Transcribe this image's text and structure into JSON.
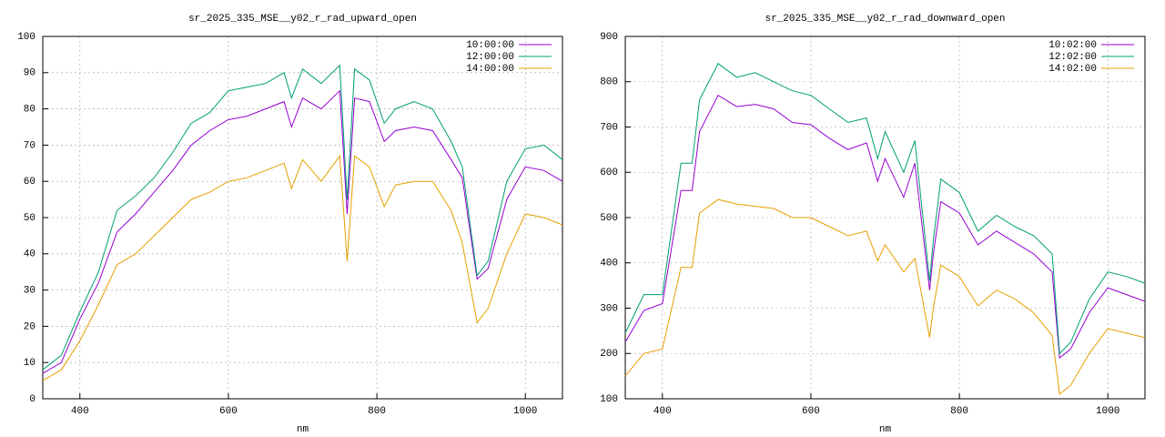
{
  "chart_data": [
    {
      "type": "line",
      "title": "sr_2025_335_MSE__y02_r_rad_upward_open",
      "x_label": "nm",
      "x": [
        350,
        375,
        400,
        425,
        450,
        475,
        500,
        525,
        550,
        575,
        600,
        625,
        650,
        675,
        685,
        700,
        725,
        750,
        760,
        770,
        790,
        810,
        825,
        850,
        875,
        900,
        915,
        935,
        950,
        975,
        1000,
        1025,
        1050
      ],
      "series": [
        {
          "name": "10:00:00",
          "color": "#9400d3",
          "values": [
            7,
            10,
            22,
            32,
            46,
            51,
            57,
            63,
            70,
            74,
            77,
            78,
            80,
            82,
            75,
            83,
            80,
            85,
            51,
            83,
            82,
            71,
            74,
            75,
            74,
            66,
            61,
            33,
            36,
            55,
            64,
            63,
            60
          ]
        },
        {
          "name": "12:00:00",
          "color": "#009e73",
          "values": [
            8,
            12,
            24,
            35,
            52,
            56,
            61,
            68,
            76,
            79,
            85,
            86,
            87,
            90,
            83,
            91,
            87,
            92,
            55,
            91,
            88,
            76,
            80,
            82,
            80,
            71,
            64,
            34,
            38,
            60,
            69,
            70,
            66
          ]
        },
        {
          "name": "14:00:00",
          "color": "#e69f00",
          "values": [
            5,
            8,
            16,
            26,
            37,
            40,
            45,
            50,
            55,
            57,
            60,
            61,
            63,
            65,
            58,
            66,
            60,
            67,
            38,
            67,
            64,
            53,
            59,
            60,
            60,
            52,
            43,
            21,
            25,
            40,
            51,
            50,
            48
          ]
        }
      ],
      "xlim": [
        350,
        1050
      ],
      "ylim": [
        0,
        100
      ],
      "xticks": [
        400,
        600,
        800,
        1000
      ],
      "yticks": [
        0,
        10,
        20,
        30,
        40,
        50,
        60,
        70,
        80,
        90,
        100
      ],
      "grid": true,
      "legend": "top-right"
    },
    {
      "type": "line",
      "title": "sr_2025_335_MSE__y02_r_rad_downward_open",
      "x_label": "nm",
      "x": [
        350,
        375,
        400,
        425,
        440,
        450,
        475,
        500,
        525,
        550,
        575,
        600,
        625,
        650,
        675,
        690,
        700,
        725,
        740,
        760,
        765,
        775,
        800,
        825,
        850,
        875,
        900,
        925,
        935,
        950,
        975,
        1000,
        1025,
        1050
      ],
      "series": [
        {
          "name": "10:02:00",
          "color": "#9400d3",
          "values": [
            225,
            295,
            310,
            560,
            560,
            690,
            770,
            745,
            750,
            740,
            710,
            705,
            675,
            650,
            665,
            580,
            630,
            545,
            620,
            340,
            420,
            535,
            510,
            440,
            470,
            445,
            420,
            380,
            190,
            210,
            290,
            345,
            330,
            315
          ]
        },
        {
          "name": "12:02:00",
          "color": "#009e73",
          "values": [
            245,
            330,
            330,
            620,
            620,
            760,
            840,
            810,
            820,
            800,
            780,
            770,
            740,
            710,
            720,
            630,
            690,
            600,
            670,
            360,
            450,
            585,
            555,
            470,
            505,
            480,
            460,
            420,
            200,
            225,
            320,
            380,
            370,
            355
          ]
        },
        {
          "name": "14:02:00",
          "color": "#e69f00",
          "values": [
            150,
            200,
            210,
            390,
            390,
            510,
            540,
            530,
            525,
            520,
            500,
            500,
            480,
            460,
            470,
            405,
            440,
            380,
            410,
            235,
            300,
            395,
            370,
            305,
            340,
            320,
            290,
            240,
            110,
            130,
            200,
            255,
            245,
            235
          ]
        }
      ],
      "xlim": [
        350,
        1050
      ],
      "ylim": [
        100,
        900
      ],
      "xticks": [
        400,
        600,
        800,
        1000
      ],
      "yticks": [
        100,
        200,
        300,
        400,
        500,
        600,
        700,
        800,
        900
      ],
      "grid": true,
      "legend": "top-right"
    }
  ]
}
